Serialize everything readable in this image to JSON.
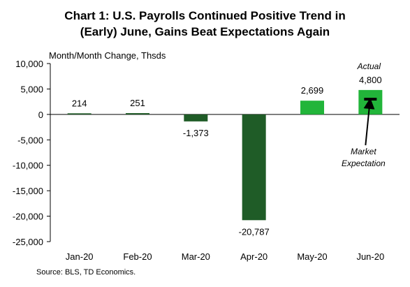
{
  "chart_data": {
    "type": "bar",
    "title_line1": "Chart 1: U.S. Payrolls Continued Positive Trend in",
    "title_line2": "(Early) June, Gains Beat Expectations Again",
    "ylabel": "Month/Month Change, Thsds",
    "categories": [
      "Jan-20",
      "Feb-20",
      "Mar-20",
      "Apr-20",
      "May-20",
      "Jun-20"
    ],
    "values": [
      214,
      251,
      -1373,
      -20787,
      2699,
      4800
    ],
    "data_labels": [
      "214",
      "251",
      "-1,373",
      "-20,787",
      "2,699",
      "4,800"
    ],
    "ylim": [
      -25000,
      10000
    ],
    "yticks": [
      10000,
      5000,
      0,
      -5000,
      -10000,
      -15000,
      -20000,
      -25000
    ],
    "ytick_labels": [
      "10,000",
      "5,000",
      "0",
      "-5,000",
      "-10,000",
      "-15,000",
      "-20,000",
      "-25,000"
    ],
    "market_expectation": {
      "category": "Jun-20",
      "value": 3000
    },
    "bar_colors": [
      "#1f5c27",
      "#1f5c27",
      "#1f5c27",
      "#1f5c27",
      "#22b53a",
      "#22b53a"
    ],
    "annotations": {
      "actual": "Actual",
      "expectation_line1": "Market",
      "expectation_line2": "Expectation"
    },
    "grid": false,
    "legend": "none",
    "source": "Source: BLS, TD Economics."
  }
}
